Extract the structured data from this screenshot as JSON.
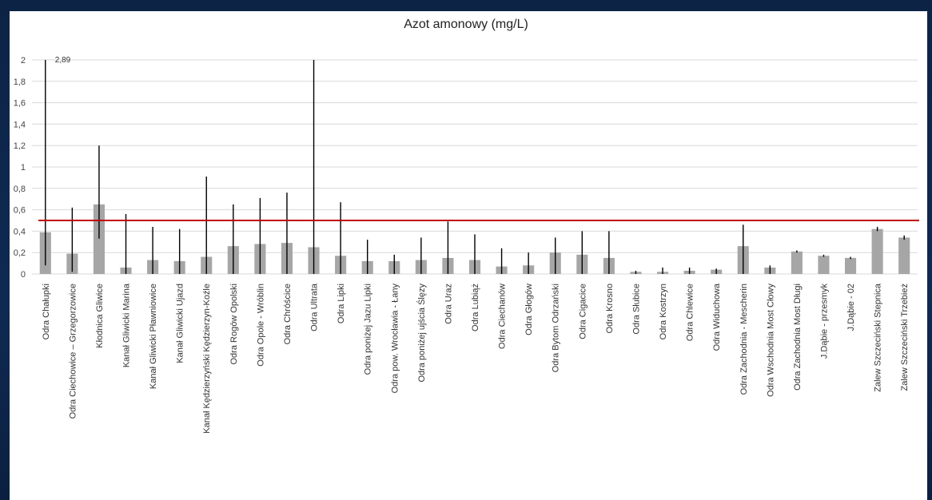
{
  "chart_data": {
    "type": "bar",
    "title": "Azot amonowy (mg/L)",
    "xlabel": "",
    "ylabel": "",
    "ylim": [
      0,
      2
    ],
    "yticks": [
      "0",
      "0,2",
      "0,4",
      "0,6",
      "0,8",
      "1",
      "1,2",
      "1,4",
      "1,6",
      "1,8",
      "2"
    ],
    "grid": true,
    "categories": [
      "Odra Chałupki",
      "Odra Ciechowice – Grzegorzowice",
      "Kłodnica Gliwice",
      "Kanał Gliwicki Marina",
      "Kanał Gliwicki Pławniowice",
      "Kanał Gliwicki Ujazd",
      "Kanał Kędzierzyński Kędzierzyn-Koźle",
      "Odra Rogów Opolski",
      "Odra Opole - Wróblin",
      "Odra Chróścice",
      "Odra Ultrata",
      "Odra Lipki",
      "Odra poniżej Jazu Lipki",
      "Odra pow. Wrocławia - Łany",
      "Odra poniżej ujścia Ślęzy",
      "Odra Uraz",
      "Odra Lubiąż",
      "Odra Ciechanów",
      "Odra Głogów",
      "Odra Bytom Odrzański",
      "Odra Cigacice",
      "Odra Krosno",
      "Odra Słubice",
      "Odra Kostrzyn",
      "Odra Chlewice",
      "Odra Widuchowa",
      "Odra Zachodnia - Mescherin",
      "Odra Wschodnia Most Cłowy",
      "Odra Zachodnia Most Długi",
      "J.Dąbie - przesmyk",
      "J.Dąbie - 02",
      "Zalew Szczeciński Stepnica",
      "Zalew Szczeciński Trzebież"
    ],
    "values": [
      0.39,
      0.19,
      0.65,
      0.06,
      0.13,
      0.12,
      0.16,
      0.26,
      0.28,
      0.29,
      0.25,
      0.17,
      0.12,
      0.12,
      0.13,
      0.15,
      0.13,
      0.07,
      0.08,
      0.2,
      0.18,
      0.15,
      0.02,
      0.02,
      0.03,
      0.04,
      0.26,
      0.06,
      0.21,
      0.17,
      0.15,
      0.42,
      0.34
    ],
    "err_low": [
      0.08,
      0.02,
      0.33,
      0.0,
      0.0,
      0.0,
      0.0,
      0.0,
      0.0,
      0.0,
      0.0,
      0.0,
      0.0,
      0.0,
      0.0,
      0.0,
      0.0,
      0.0,
      0.0,
      0.0,
      0.0,
      0.0,
      0.0,
      0.0,
      0.0,
      0.0,
      0.0,
      0.0,
      0.2,
      0.16,
      0.14,
      0.4,
      0.32
    ],
    "err_high": [
      2.0,
      0.62,
      1.2,
      0.56,
      0.44,
      0.42,
      0.91,
      0.65,
      0.71,
      0.76,
      2.0,
      0.67,
      0.32,
      0.18,
      0.34,
      0.49,
      0.37,
      0.24,
      0.2,
      0.34,
      0.4,
      0.4,
      0.03,
      0.06,
      0.06,
      0.05,
      0.46,
      0.08,
      0.22,
      0.18,
      0.16,
      0.44,
      0.36
    ],
    "reference_line": 0.5,
    "annotations": [
      {
        "category": "Odra Chałupki",
        "text": "2,89"
      }
    ],
    "colors": {
      "bar": "#a6a6a6",
      "error": "#000000",
      "reference": "#c00000",
      "grid": "#d9d9d9"
    }
  }
}
